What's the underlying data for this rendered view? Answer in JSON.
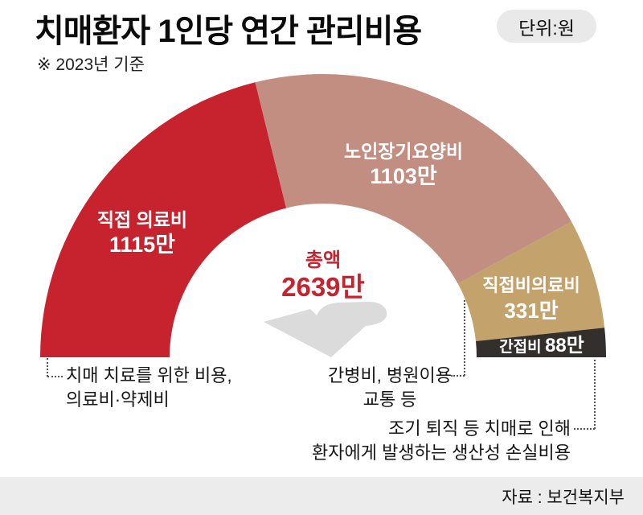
{
  "header": {
    "title": "치매환자 1인당 연간 관리비용",
    "unit_badge": "단위:원",
    "subtitle": "※ 2023년 기준"
  },
  "chart_data": {
    "type": "pie",
    "variant": "half-donut",
    "title": "치매환자 1인당 연간 관리비용",
    "unit": "만 원",
    "basis": "2023년 기준",
    "total": {
      "label": "총액",
      "value": 2639,
      "value_label": "2639만"
    },
    "segments": [
      {
        "id": "direct-medical",
        "label": "직접 의료비",
        "value": 1115,
        "value_label": "1115만",
        "color": "#c6232f"
      },
      {
        "id": "longterm-care",
        "label": "노인장기요양비",
        "value": 1103,
        "value_label": "1103만",
        "color": "#c18e81"
      },
      {
        "id": "direct-nonmedical",
        "label": "직접비의료비",
        "value": 331,
        "value_label": "331만",
        "color": "#c3a26b"
      },
      {
        "id": "indirect",
        "label": "간접비",
        "value": 88,
        "value_label": "88만",
        "color": "#332f2d"
      }
    ],
    "legend_position": "on-segments",
    "accent_color": "#c6232f",
    "hand_icon_color": "#dbdbdb"
  },
  "annotations": {
    "left": {
      "target": "직접 의료비",
      "lines": [
        "치매 치료를 위한 비용,",
        "의료비·약제비"
      ]
    },
    "mid": {
      "target": "직접비의료비",
      "lines": [
        "간병비, 병원이용",
        "교통 등"
      ]
    },
    "right": {
      "target": "간접비",
      "lines": [
        "조기 퇴직 등 치매로 인해",
        "환자에게 발생하는 생산성 손실비용"
      ]
    }
  },
  "source": "자료 : 보건복지부"
}
